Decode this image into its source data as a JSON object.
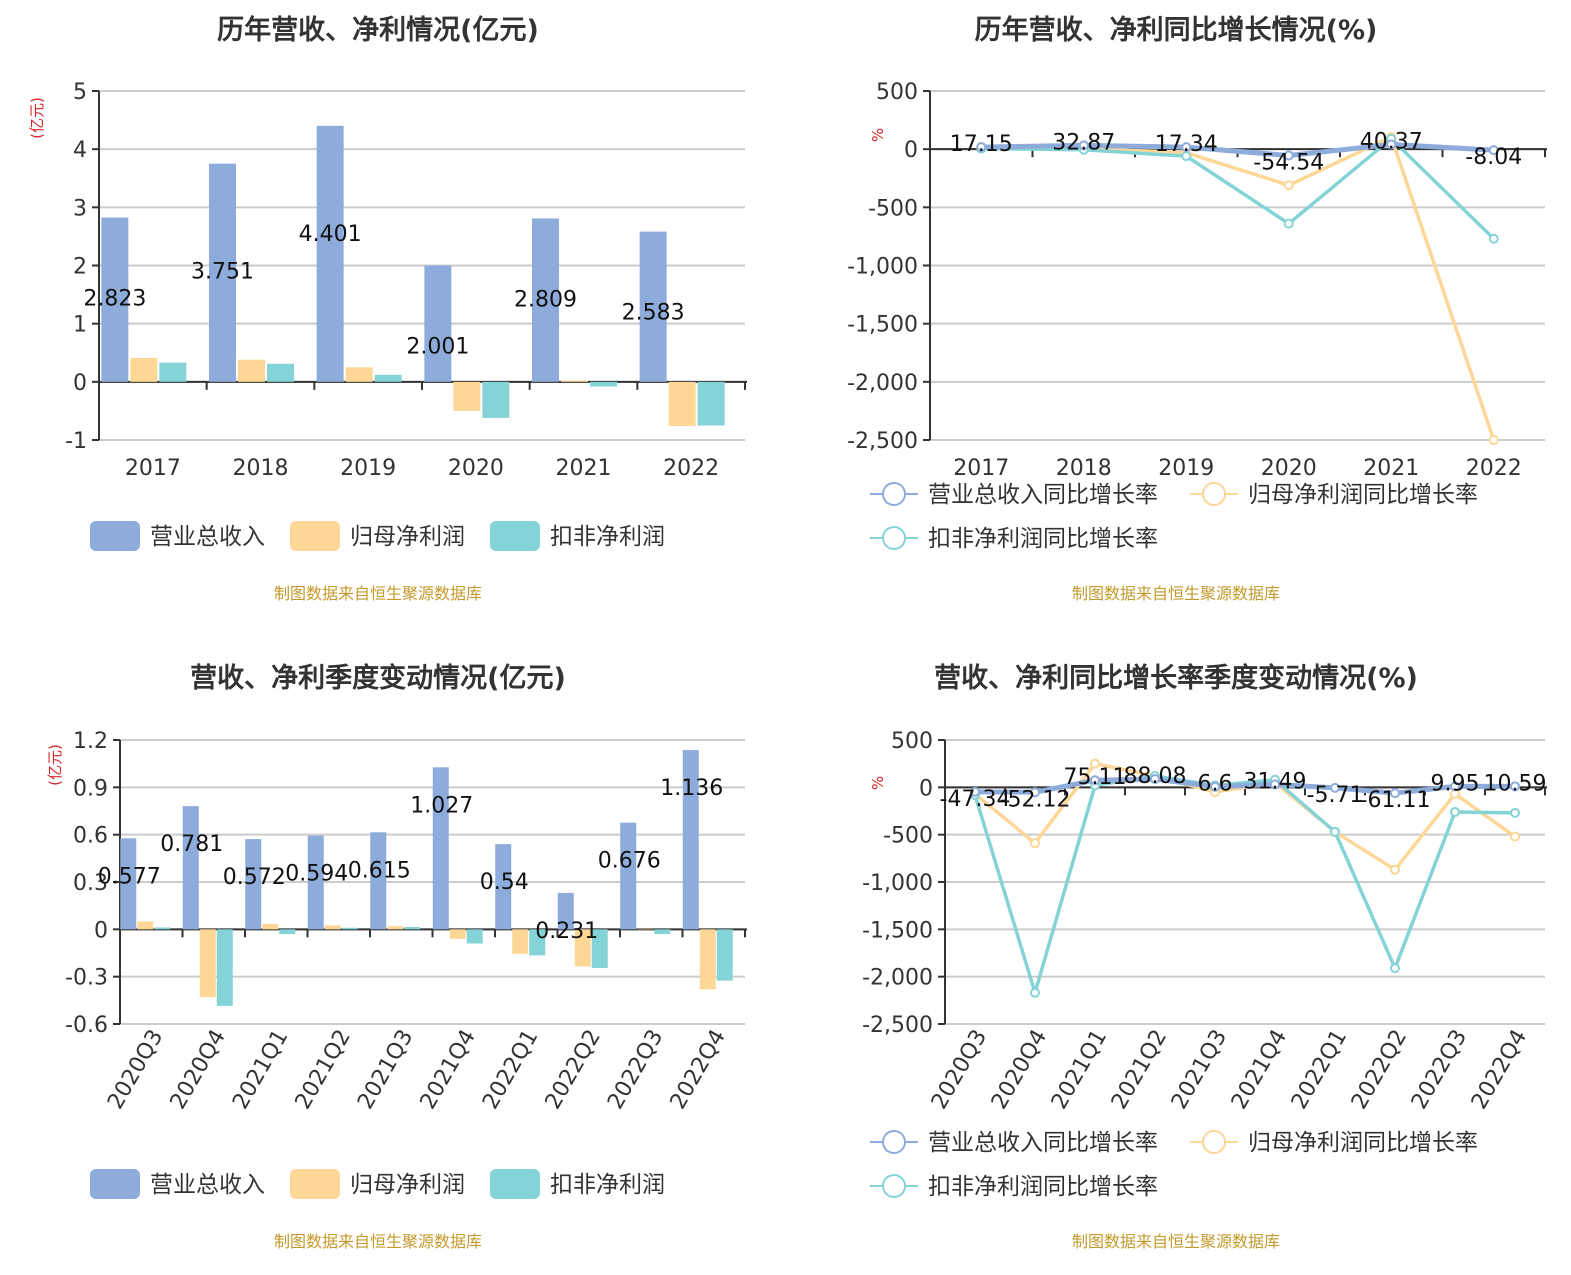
{
  "colors": {
    "revenue": "#8eacdb",
    "parent_profit": "#fed797",
    "deducted_profit": "#84d3d6",
    "grid": "#cccccc",
    "axis": "#333333",
    "source": "#c49a2c",
    "unit": "#d6262b"
  },
  "source_text": "制图数据来自恒生聚源数据库",
  "chart_data": [
    {
      "id": "annual_amount",
      "type": "bar",
      "title": "历年营收、净利情况(亿元)",
      "ylabel": "(亿元)",
      "xlabel": "",
      "ylim": [
        -1,
        5
      ],
      "yticks": [
        5,
        4,
        3,
        2,
        1,
        0,
        -1
      ],
      "grid": true,
      "legend_position": "bottom",
      "categories": [
        "2017",
        "2018",
        "2019",
        "2020",
        "2021",
        "2022"
      ],
      "series": [
        {
          "name": "营业总收入",
          "key": "revenue",
          "values": [
            2.823,
            3.751,
            4.401,
            2.001,
            2.809,
            2.583
          ]
        },
        {
          "name": "归母净利润",
          "key": "parent_profit",
          "values": [
            0.41,
            0.38,
            0.25,
            -0.5,
            0.02,
            -0.76
          ]
        },
        {
          "name": "扣非净利润",
          "key": "deducted_profit",
          "values": [
            0.33,
            0.31,
            0.12,
            -0.62,
            -0.08,
            -0.75
          ]
        }
      ],
      "data_labels": [
        "2.823",
        "3.751",
        "4.401",
        "2.001",
        "2.809",
        "2.583"
      ]
    },
    {
      "id": "annual_growth",
      "type": "line",
      "title": "历年营收、净利同比增长情况(%)",
      "ylabel": "%",
      "xlabel": "",
      "ylim": [
        -2500,
        500
      ],
      "yticks": [
        "500",
        "0",
        "-500",
        "-1,000",
        "-1,500",
        "-2,000",
        "-2,500"
      ],
      "grid": true,
      "legend_position": "bottom",
      "categories": [
        "2017",
        "2018",
        "2019",
        "2020",
        "2021",
        "2022"
      ],
      "series": [
        {
          "name": "营业总收入同比增长率",
          "key": "revenue",
          "values": [
            17.15,
            32.87,
            17.34,
            -54.54,
            40.37,
            -8.04
          ]
        },
        {
          "name": "归母净利润同比增长率",
          "key": "parent_profit",
          "values": [
            20,
            5,
            -30,
            -310,
            105,
            -2500
          ]
        },
        {
          "name": "扣非净利润同比增长率",
          "key": "deducted_profit",
          "values": [
            5,
            -5,
            -60,
            -640,
            90,
            -770
          ]
        }
      ],
      "data_labels": [
        "17.15",
        "32.87",
        "17.34",
        "-54.54",
        "40.37",
        "-8.04"
      ]
    },
    {
      "id": "quarterly_amount",
      "type": "bar",
      "title": "营收、净利季度变动情况(亿元)",
      "ylabel": "(亿元)",
      "xlabel": "",
      "ylim": [
        -0.6,
        1.2
      ],
      "yticks": [
        "1.2",
        "0.9",
        "0.6",
        "0.3",
        "0",
        "-0.3",
        "-0.6"
      ],
      "grid": true,
      "legend_position": "bottom",
      "categories": [
        "2020Q3",
        "2020Q4",
        "2021Q1",
        "2021Q2",
        "2021Q3",
        "2021Q4",
        "2022Q1",
        "2022Q2",
        "2022Q3",
        "2022Q4"
      ],
      "series": [
        {
          "name": "营业总收入",
          "key": "revenue",
          "values": [
            0.577,
            0.781,
            0.572,
            0.594,
            0.615,
            1.027,
            0.54,
            0.231,
            0.676,
            1.136
          ]
        },
        {
          "name": "归母净利润",
          "key": "parent_profit",
          "values": [
            0.05,
            -0.43,
            0.035,
            0.025,
            0.02,
            -0.06,
            -0.155,
            -0.235,
            0.003,
            -0.38
          ]
        },
        {
          "name": "扣非净利润",
          "key": "deducted_profit",
          "values": [
            0.012,
            -0.485,
            -0.03,
            0.01,
            0.015,
            -0.09,
            -0.165,
            -0.245,
            -0.03,
            -0.325
          ]
        }
      ],
      "data_labels": [
        "0.577",
        "0.781",
        "0.572",
        "0.594",
        "0.615",
        "1.027",
        "0.54",
        "0.231",
        "0.676",
        "1.136"
      ]
    },
    {
      "id": "quarterly_growth",
      "type": "line",
      "title": "营收、净利同比增长率季度变动情况(%)",
      "ylabel": "%",
      "xlabel": "",
      "ylim": [
        -2500,
        500
      ],
      "yticks": [
        "500",
        "0",
        "-500",
        "-1,000",
        "-1,500",
        "-2,000",
        "-2,500"
      ],
      "grid": true,
      "legend_position": "bottom",
      "categories": [
        "2020Q3",
        "2020Q4",
        "2021Q1",
        "2021Q2",
        "2021Q3",
        "2021Q4",
        "2022Q1",
        "2022Q2",
        "2022Q3",
        "2022Q4"
      ],
      "series": [
        {
          "name": "营业总收入同比增长率",
          "key": "revenue",
          "values": [
            -47.34,
            -52.12,
            75.11,
            88.08,
            6.6,
            31.49,
            -5.71,
            -61.11,
            9.95,
            10.59
          ]
        },
        {
          "name": "归母净利润同比增长率",
          "key": "parent_profit",
          "values": [
            -70,
            -590,
            250,
            120,
            -50,
            50,
            -470,
            -870,
            -70,
            -520
          ]
        },
        {
          "name": "扣非净利润同比增长率",
          "key": "deducted_profit",
          "values": [
            -80,
            -2170,
            20,
            120,
            20,
            80,
            -470,
            -1910,
            -260,
            -270
          ]
        }
      ],
      "data_labels": [
        "-47.34",
        "-52.12",
        "75.11",
        "88.08",
        "6.6",
        "31.49",
        "-5.71",
        "-61.11",
        "9.95",
        "10.59"
      ]
    }
  ]
}
